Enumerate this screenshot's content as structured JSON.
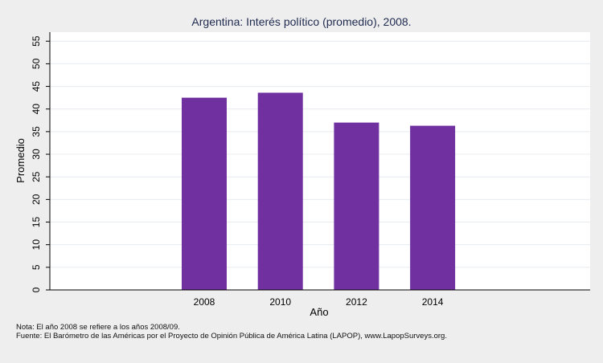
{
  "chart_data": {
    "type": "bar",
    "title": "Argentina: Interés político (promedio), 2008.",
    "xlabel": "Año",
    "ylabel": "Promedio",
    "categories": [
      "2008",
      "2010",
      "2012",
      "2014"
    ],
    "values": [
      42.5,
      43.6,
      37.0,
      36.3
    ],
    "ylim": [
      0,
      57
    ],
    "yticks": [
      0,
      5,
      10,
      15,
      20,
      25,
      30,
      35,
      40,
      45,
      50,
      55
    ],
    "grid": true,
    "legend": "none",
    "bar_color": "#7030a0"
  },
  "footnotes": {
    "nota": "Nota: El año 2008 se refiere a los años 2008/09.",
    "fuente": "Fuente: El Barómetro de las Américas por el Proyecto de Opinión Pública de América Latina (LAPOP), www.LapopSurveys.org."
  },
  "colors": {
    "background": "#eeeeee",
    "plot_background": "#ffffff",
    "title": "#1f2a4f"
  }
}
